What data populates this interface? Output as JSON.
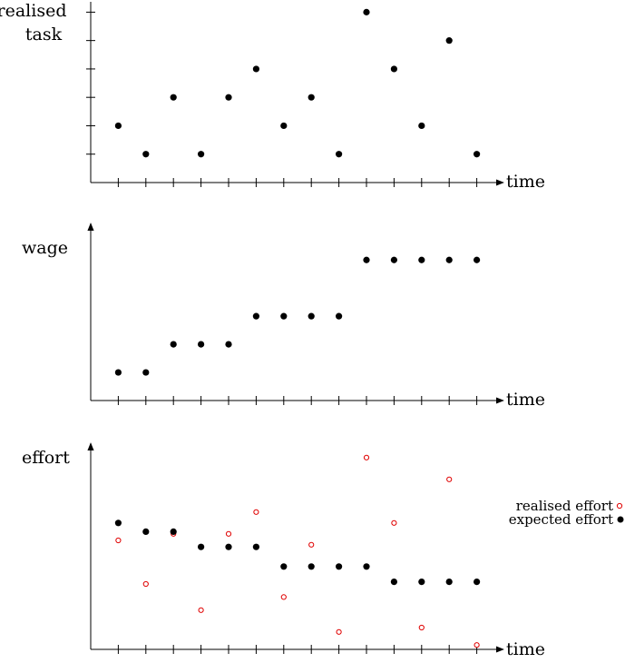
{
  "chart_data": [
    {
      "type": "scatter",
      "ylabel_lines": [
        "realised",
        "task"
      ],
      "xlabel": "time",
      "x": [
        1,
        2,
        3,
        4,
        5,
        6,
        7,
        8,
        9,
        10,
        11,
        12,
        13,
        14
      ],
      "series": [
        {
          "values": [
            2,
            1,
            3,
            1,
            3,
            4,
            2,
            3,
            1,
            6,
            4,
            2,
            5,
            1
          ],
          "marker": "filled",
          "color": "#000000"
        }
      ],
      "ylim": [
        0,
        6.3
      ],
      "xlim": [
        0,
        14.7
      ],
      "y_ticks": [
        1,
        2,
        3,
        4,
        5,
        6
      ],
      "x_ticks": [
        1,
        2,
        3,
        4,
        5,
        6,
        7,
        8,
        9,
        10,
        11,
        12,
        13,
        14
      ],
      "y_axis_arrow": false,
      "grid": false
    },
    {
      "type": "scatter",
      "ylabel_lines": [
        "wage"
      ],
      "xlabel": "time",
      "x": [
        1,
        2,
        3,
        4,
        5,
        6,
        7,
        8,
        9,
        10,
        11,
        12,
        13,
        14
      ],
      "series": [
        {
          "values": [
            1,
            1,
            2,
            2,
            2,
            3,
            3,
            3,
            3,
            5,
            5,
            5,
            5,
            5
          ],
          "marker": "filled",
          "color": "#000000"
        }
      ],
      "ylim": [
        0,
        6.3
      ],
      "xlim": [
        0,
        14.7
      ],
      "y_ticks": [],
      "x_ticks": [
        1,
        2,
        3,
        4,
        5,
        6,
        7,
        8,
        9,
        10,
        11,
        12,
        13,
        14
      ],
      "y_axis_arrow": true,
      "grid": false
    },
    {
      "type": "scatter",
      "ylabel_lines": [
        "effort"
      ],
      "xlabel": "time",
      "x": [
        1,
        2,
        3,
        4,
        5,
        6,
        7,
        8,
        9,
        10,
        11,
        12,
        13,
        14
      ],
      "series": [
        {
          "name": "realised effort",
          "values": [
            5.0,
            3.0,
            5.3,
            1.8,
            5.3,
            6.3,
            2.4,
            4.8,
            0.8,
            8.8,
            5.8,
            1.0,
            7.8,
            0.2
          ],
          "marker": "open",
          "color": "#e00000"
        },
        {
          "name": "expected effort",
          "values": [
            5.8,
            5.4,
            5.4,
            4.7,
            4.7,
            4.7,
            3.8,
            3.8,
            3.8,
            3.8,
            3.1,
            3.1,
            3.1,
            3.1
          ],
          "marker": "filled",
          "color": "#000000"
        }
      ],
      "ylim": [
        0,
        9.25
      ],
      "xlim": [
        0,
        14.7
      ],
      "y_ticks": [],
      "x_ticks": [
        1,
        2,
        3,
        4,
        5,
        6,
        7,
        8,
        9,
        10,
        11,
        12,
        13,
        14
      ],
      "y_axis_arrow": true,
      "legend": "right",
      "grid": false
    }
  ]
}
